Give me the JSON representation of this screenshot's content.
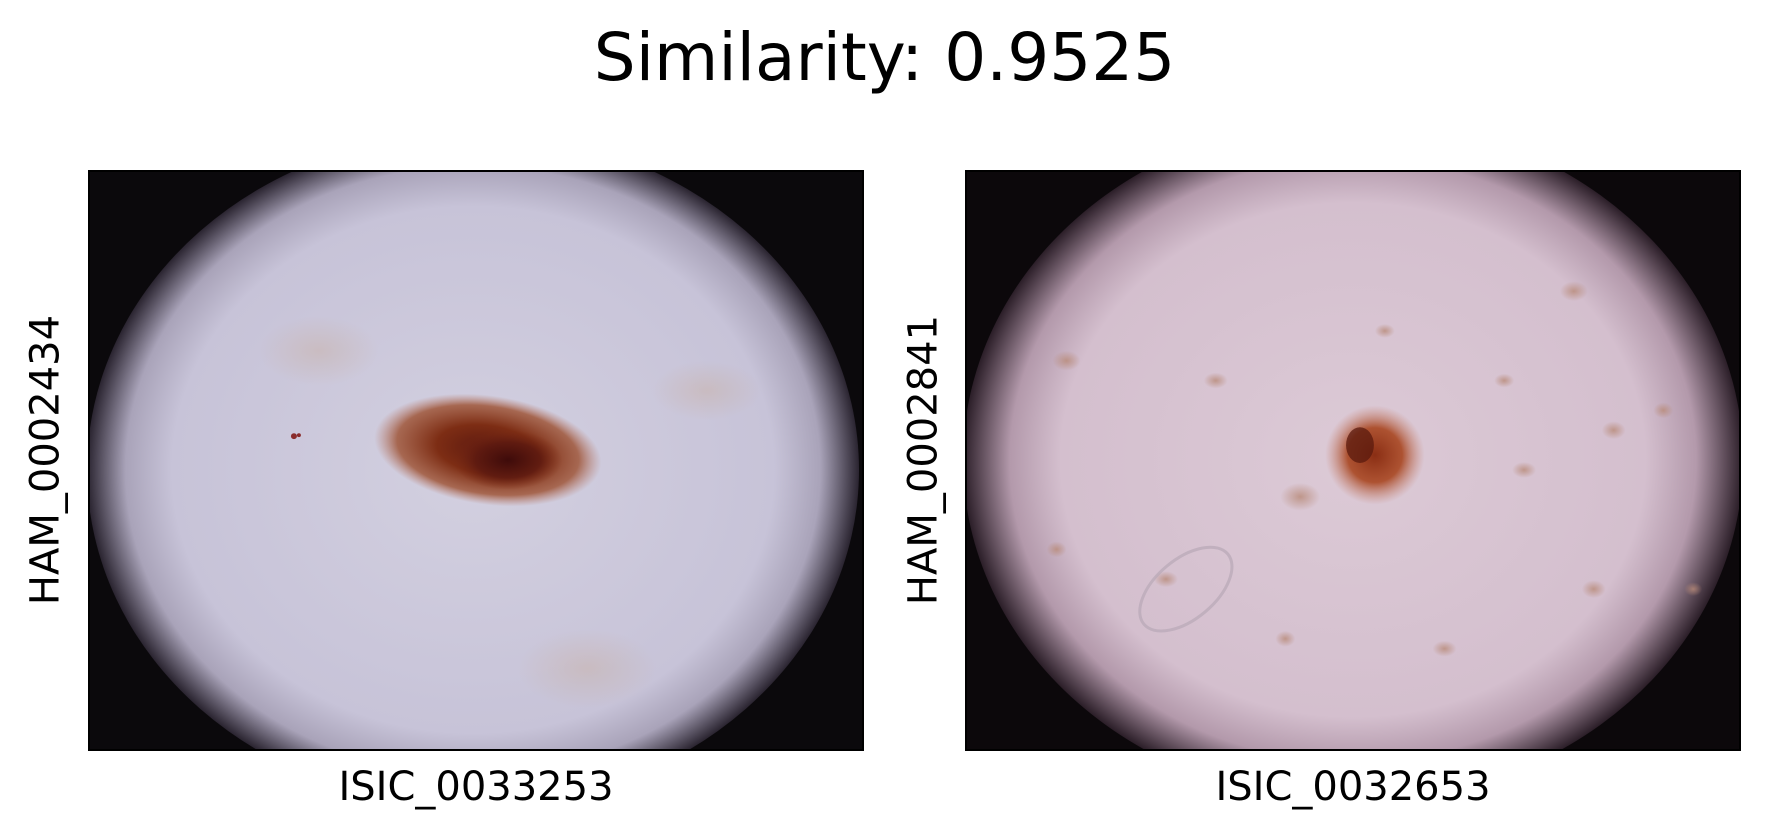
{
  "title": "Similarity: 0.9525",
  "pair": [
    {
      "xlabel": "ISIC_0033253",
      "ylabel": "HAM_0002434",
      "skin_color": "#cbc7da",
      "lesion_color": "#7a2a14"
    },
    {
      "xlabel": "ISIC_0032653",
      "ylabel": "HAM_0002841",
      "skin_color": "#d8c3d2",
      "lesion_color": "#a13b1c"
    }
  ]
}
